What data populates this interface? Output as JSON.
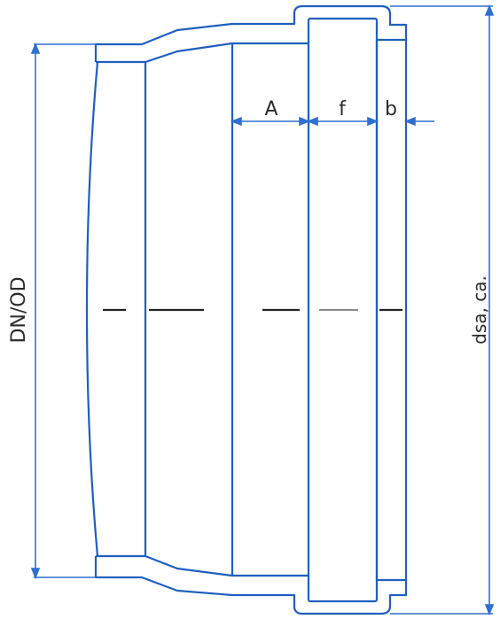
{
  "labels": {
    "dn_od": "DN/OD",
    "dsa": "dsa, ca.",
    "a": "A",
    "f": "f",
    "b": "b"
  },
  "colors": {
    "outline": "#1f5fbf",
    "dimension": "#2f6fd0",
    "centerline": "#222222",
    "hidden": "#8a8a8a",
    "background": "#ffffff"
  }
}
